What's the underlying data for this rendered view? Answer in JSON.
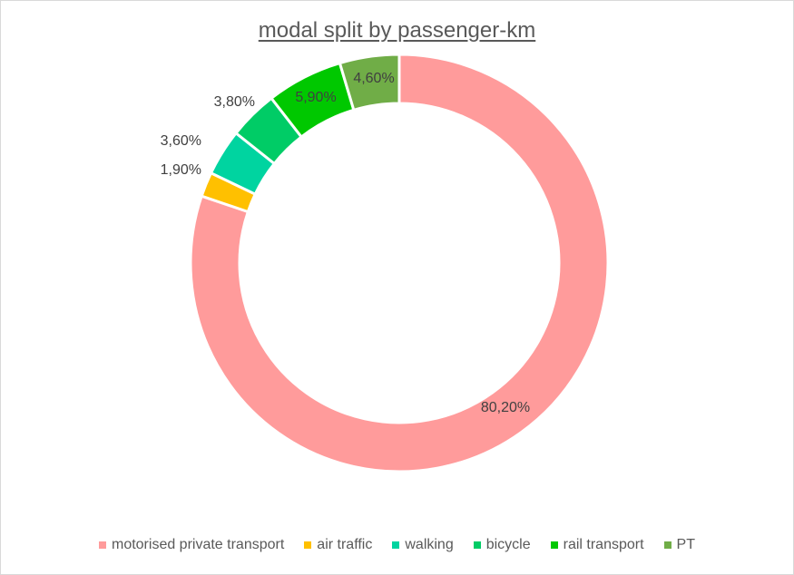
{
  "chart_data": {
    "type": "pie",
    "title": "modal split by passenger-km",
    "legend_position": "bottom",
    "categories": [
      "motorised private transport",
      "air traffic",
      "walking",
      "bicycle",
      "rail transport",
      "PT"
    ],
    "values": [
      80.2,
      1.9,
      3.6,
      3.8,
      5.9,
      4.6
    ],
    "value_labels": [
      "80,20%",
      "1,90%",
      "3,60%",
      "3,80%",
      "5,90%",
      "4,60%"
    ],
    "colors": [
      "#ff9b9b",
      "#ffc000",
      "#00d4a0",
      "#00cc66",
      "#00c800",
      "#70ad47"
    ],
    "donut": true
  }
}
